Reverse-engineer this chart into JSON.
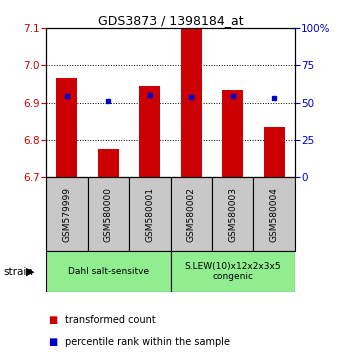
{
  "title": "GDS3873 / 1398184_at",
  "samples": [
    "GSM579999",
    "GSM580000",
    "GSM580001",
    "GSM580002",
    "GSM580003",
    "GSM580004"
  ],
  "red_values": [
    6.965,
    6.775,
    6.945,
    7.1,
    6.935,
    6.835
  ],
  "blue_values": [
    6.918,
    6.905,
    6.92,
    6.915,
    6.918,
    6.912
  ],
  "y_min": 6.7,
  "y_max": 7.1,
  "y_ticks_left": [
    6.7,
    6.8,
    6.9,
    7.0,
    7.1
  ],
  "y_ticks_right": [
    0,
    25,
    50,
    75,
    100
  ],
  "bar_bottom": 6.7,
  "red_color": "#CC0000",
  "blue_color": "#0000CC",
  "strain_label": "strain",
  "legend_red": "transformed count",
  "legend_blue": "percentile rank within the sample",
  "group1_label": "Dahl salt-sensitve",
  "group2_label": "S.LEW(10)x12x2x3x5\ncongenic",
  "green_color": "#90EE90",
  "gray_color": "#C8C8C8"
}
